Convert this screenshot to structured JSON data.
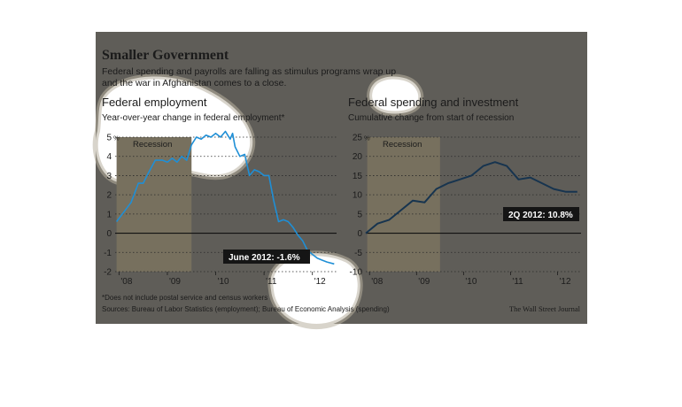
{
  "header": {
    "title": "Smaller Government",
    "subtitle_line1": "Federal spending and payrolls are falling as stimulus programs wrap up",
    "subtitle_line2": "and the war in Afghanistan comes to a close."
  },
  "footer": {
    "footnote": "*Does not include postal service and census workers",
    "sources": "Sources: Bureau of Labor Statistics (employment); Bureau of Economic Analysis (spending)",
    "credit": "The Wall Street Journal"
  },
  "colors": {
    "panel_background": "#5f5d58",
    "recession_band": "#77705e",
    "employment_line": "#1f8fd6",
    "spending_line": "#17344f",
    "highlight_blob": "#ffffff",
    "callout_box": "#151515"
  },
  "chart_data": [
    {
      "type": "line",
      "title": "Federal employment",
      "subtitle": "Year-over-year change in federal employment*",
      "y_unit_label": "%",
      "recession_label": "Recession",
      "recession_range": [
        2007.95,
        2009.5
      ],
      "xlim": [
        2007.92,
        2012.5
      ],
      "ylim": [
        -2,
        5
      ],
      "x_tick_labels": [
        "'08",
        "'09",
        "'10",
        "'11",
        "'12"
      ],
      "x_ticks": [
        2008,
        2009,
        2010,
        2011,
        2012
      ],
      "y_ticks": [
        -2,
        -1,
        0,
        1,
        2,
        3,
        4,
        5
      ],
      "y_tick_labels": [
        "-2",
        "-1",
        "0",
        "1",
        "2",
        "3",
        "4",
        "5"
      ],
      "grid": "horizontal dotted",
      "callout": "June 2012: -1.6%",
      "series": [
        {
          "x": [
            2007.95,
            2008.1,
            2008.25,
            2008.4,
            2008.5,
            2008.6,
            2008.75,
            2008.9,
            2009.0,
            2009.1,
            2009.2,
            2009.3,
            2009.4,
            2009.5,
            2009.6,
            2009.7,
            2009.8,
            2009.9,
            2010.0,
            2010.1,
            2010.2,
            2010.3,
            2010.35,
            2010.4,
            2010.5,
            2010.6,
            2010.7,
            2010.8,
            2010.9,
            2011.0,
            2011.1,
            2011.2,
            2011.3,
            2011.4,
            2011.5,
            2011.6,
            2011.7,
            2011.8,
            2011.9,
            2012.0,
            2012.1,
            2012.2,
            2012.3,
            2012.45
          ],
          "y": [
            0.6,
            1.1,
            1.6,
            2.6,
            2.6,
            3.1,
            3.8,
            3.8,
            3.7,
            3.9,
            3.7,
            4.0,
            3.8,
            4.6,
            5.0,
            4.9,
            5.1,
            5.0,
            5.2,
            5.0,
            5.3,
            4.9,
            5.2,
            4.5,
            4.0,
            4.1,
            3.0,
            3.3,
            3.2,
            3.0,
            3.0,
            1.7,
            0.6,
            0.7,
            0.6,
            0.3,
            -0.1,
            -0.4,
            -0.9,
            -1.1,
            -1.3,
            -1.4,
            -1.5,
            -1.6
          ]
        }
      ]
    },
    {
      "type": "line",
      "title": "Federal spending and investment",
      "subtitle": "Cumulative change from start of recession",
      "y_unit_label": "%",
      "recession_label": "Recession",
      "recession_range": [
        2007.95,
        2009.5
      ],
      "xlim": [
        2007.92,
        2012.5
      ],
      "ylim": [
        -10,
        25
      ],
      "x_tick_labels": [
        "'08",
        "'09",
        "'10",
        "'11",
        "'12"
      ],
      "x_ticks": [
        2008,
        2009,
        2010,
        2011,
        2012
      ],
      "y_ticks": [
        -10,
        -5,
        0,
        5,
        10,
        15,
        20,
        25
      ],
      "y_tick_labels": [
        "-10",
        "-5",
        "0",
        "5",
        "10",
        "15",
        "20",
        "25"
      ],
      "grid": "horizontal dotted",
      "callout": "2Q 2012: 10.8%",
      "series": [
        {
          "x": [
            2007.92,
            2008.17,
            2008.42,
            2008.67,
            2008.92,
            2009.17,
            2009.42,
            2009.67,
            2009.92,
            2010.17,
            2010.42,
            2010.67,
            2010.92,
            2011.17,
            2011.42,
            2011.67,
            2011.92,
            2012.17,
            2012.42
          ],
          "y": [
            0,
            2.5,
            3.5,
            6.0,
            8.5,
            8.0,
            11.5,
            13.0,
            14.0,
            15.0,
            17.5,
            18.5,
            17.5,
            14.0,
            14.5,
            13.0,
            11.5,
            10.8,
            10.8
          ]
        }
      ]
    }
  ]
}
